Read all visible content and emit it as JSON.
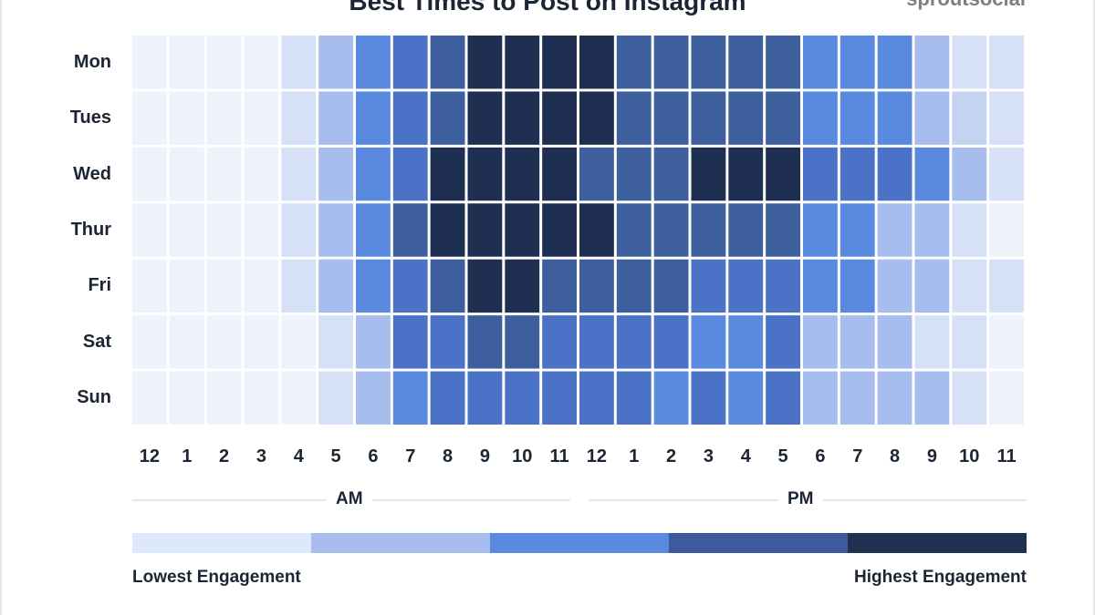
{
  "chart_data": {
    "type": "heatmap",
    "title": "Best Times to Post on Instagram",
    "brand": "sproutsocial",
    "rows": [
      "Mon",
      "Tues",
      "Wed",
      "Thur",
      "Fri",
      "Sat",
      "Sun"
    ],
    "columns": [
      "12",
      "1",
      "2",
      "3",
      "4",
      "5",
      "6",
      "7",
      "8",
      "9",
      "10",
      "11",
      "12",
      "1",
      "2",
      "3",
      "4",
      "5",
      "6",
      "7",
      "8",
      "9",
      "10",
      "11"
    ],
    "column_groups": [
      {
        "label": "AM",
        "from": 0,
        "to": 11
      },
      {
        "label": "PM",
        "from": 12,
        "to": 23
      }
    ],
    "scale_min": 0,
    "scale_max": 9,
    "values": [
      [
        0,
        0,
        0,
        0,
        1,
        3,
        5,
        6,
        7,
        9,
        9,
        9,
        9,
        7,
        7,
        7,
        7,
        7,
        5,
        5,
        5,
        3,
        1,
        1
      ],
      [
        0,
        0,
        0,
        0,
        1,
        3,
        5,
        6,
        7,
        9,
        9,
        9,
        9,
        7,
        7,
        7,
        7,
        7,
        5,
        5,
        5,
        3,
        2,
        1
      ],
      [
        0,
        0,
        0,
        0,
        1,
        3,
        5,
        6,
        9,
        9,
        9,
        9,
        7,
        7,
        7,
        9,
        9,
        9,
        6,
        6,
        6,
        5,
        3,
        1
      ],
      [
        0,
        0,
        0,
        0,
        1,
        3,
        5,
        7,
        9,
        9,
        9,
        9,
        9,
        7,
        7,
        7,
        7,
        7,
        5,
        5,
        3,
        3,
        1,
        0
      ],
      [
        0,
        0,
        0,
        0,
        1,
        3,
        5,
        6,
        7,
        9,
        9,
        7,
        7,
        7,
        7,
        6,
        6,
        6,
        5,
        5,
        3,
        3,
        1,
        1
      ],
      [
        0,
        0,
        0,
        0,
        0,
        1,
        3,
        6,
        6,
        7,
        7,
        6,
        6,
        6,
        6,
        5,
        5,
        6,
        3,
        3,
        3,
        1,
        1,
        0
      ],
      [
        0,
        0,
        0,
        0,
        0,
        1,
        3,
        5,
        6,
        6,
        6,
        6,
        6,
        6,
        5,
        6,
        5,
        6,
        3,
        3,
        3,
        3,
        1,
        0
      ]
    ],
    "colors": [
      "#eef2fb",
      "#d6e1f7",
      "#c4d3f2",
      "#a6bdee",
      "#7ea0e8",
      "#5a8ae0",
      "#4a72c6",
      "#3d5f9e",
      "#304d88",
      "#1f2f52"
    ],
    "legend": {
      "colors": [
        "#dde8fb",
        "#a6bdee",
        "#5a8ae0",
        "#3d5a9c",
        "#1f3050"
      ],
      "low_label": "Lowest Engagement",
      "high_label": "Highest Engagement"
    }
  }
}
